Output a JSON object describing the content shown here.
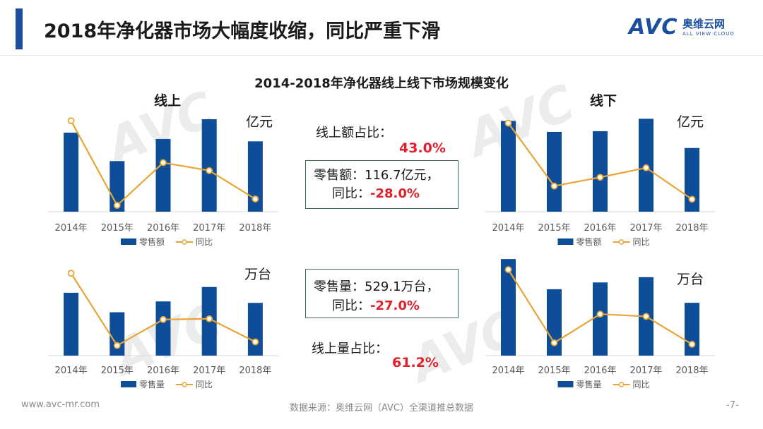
{
  "header": {
    "title": "2018年净化器市场大幅度收缩，同比严重下滑",
    "logo_text": "AVC",
    "logo_cn": "奥维云网",
    "logo_en": "ALL VIEW CLOUD"
  },
  "main_title": "2014-2018年净化器线上线下市场规模变化",
  "panels": {
    "online_title": "线上",
    "offline_title": "线下",
    "unit_amount": "亿元",
    "unit_volume": "万台"
  },
  "stats": {
    "online_amount_share_label": "线上额占比：",
    "online_amount_share_value": "43.0%",
    "amount_line1": "零售额：116.7亿元，",
    "amount_yoy_label": "同比：",
    "amount_yoy_value": "-28.0%",
    "volume_line1": "零售量：529.1万台，",
    "volume_yoy_label": "同比：",
    "volume_yoy_value": "-27.0%",
    "online_volume_share_label": "线上量占比：",
    "online_volume_share_value": "61.2%"
  },
  "colors": {
    "bar": "#0e4d97",
    "line": "#e8a535",
    "accent": "#1f4e9c",
    "red": "#e0212b"
  },
  "chart_data": [
    {
      "type": "bar",
      "panel": "online-amount",
      "categories": [
        "2014年",
        "2015年",
        "2016年",
        "2017年",
        "2018年"
      ],
      "series": [
        {
          "name": "零售额",
          "type": "bar",
          "values": [
            100,
            64,
            92,
            117,
            89
          ]
        },
        {
          "name": "同比",
          "type": "line",
          "values": [
            115,
            8,
            62,
            52,
            16
          ]
        }
      ],
      "ylim": [
        0,
        125
      ]
    },
    {
      "type": "bar",
      "panel": "offline-amount",
      "categories": [
        "2014年",
        "2015年",
        "2016年",
        "2017年",
        "2018年"
      ],
      "series": [
        {
          "name": "零售额",
          "type": "bar",
          "values": [
            124,
            109,
            110,
            127,
            87
          ]
        },
        {
          "name": "同比",
          "type": "line",
          "values": [
            121,
            35,
            47,
            60,
            17
          ]
        }
      ],
      "ylim": [
        0,
        135
      ]
    },
    {
      "type": "bar",
      "panel": "online-volume",
      "categories": [
        "2014年",
        "2015年",
        "2016年",
        "2017年",
        "2018年"
      ],
      "series": [
        {
          "name": "零售量",
          "type": "bar",
          "values": [
            87,
            60,
            75,
            95,
            73
          ]
        },
        {
          "name": "同比",
          "type": "line",
          "values": [
            114,
            14,
            50,
            51,
            19
          ]
        }
      ],
      "ylim": [
        0,
        125
      ]
    },
    {
      "type": "bar",
      "panel": "offline-volume",
      "categories": [
        "2014年",
        "2015年",
        "2016年",
        "2017年",
        "2018年"
      ],
      "series": [
        {
          "name": "零售量",
          "type": "bar",
          "values": [
            128,
            88,
            97,
            104,
            70
          ]
        },
        {
          "name": "同比",
          "type": "line",
          "values": [
            114,
            17,
            55,
            52,
            15
          ]
        }
      ],
      "ylim": [
        0,
        130
      ]
    }
  ],
  "footer": {
    "url": "www.avc-mr.com",
    "source": "数据来源：奥维云网（AVC）全渠道推总数据",
    "page": "-7-"
  }
}
